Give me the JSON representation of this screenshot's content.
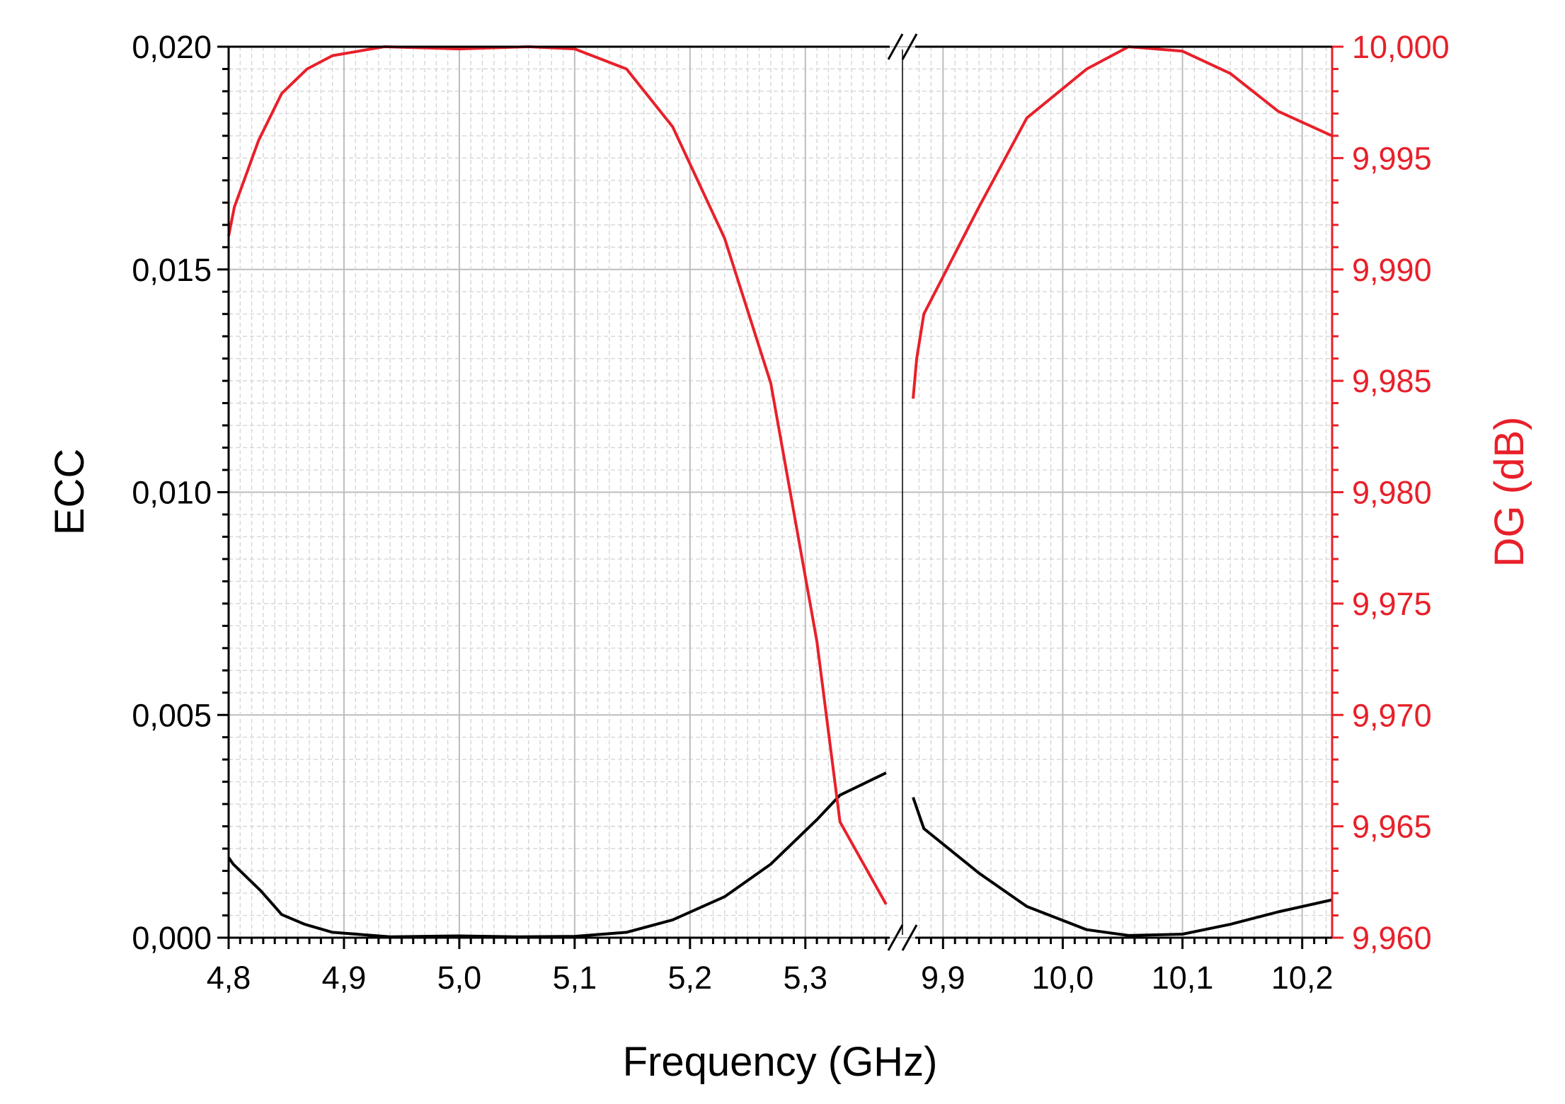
{
  "chart_data": {
    "type": "line",
    "xlabel": "Frequency (GHz)",
    "ylabel_left": "ECC",
    "ylabel_right": "DG (dB)",
    "colors": {
      "ecc": "#000000",
      "dg": "#e8202a",
      "grid": "#c8c8c8"
    },
    "grid": true,
    "x_axis_break": {
      "segments": [
        [
          4.8,
          5.375
        ],
        [
          9.875,
          10.225
        ]
      ]
    },
    "y_left": {
      "range": [
        0,
        0.02
      ],
      "ticks": [
        "0,000",
        "0,005",
        "0,010",
        "0,015",
        "0,020"
      ]
    },
    "y_right": {
      "range": [
        9.96,
        10.0
      ],
      "ticks": [
        "9,960",
        "9,965",
        "9,970",
        "9,975",
        "9,980",
        "9,985",
        "9,990",
        "9,995",
        "10,000"
      ]
    },
    "x_ticks": [
      {
        "x": 4.8,
        "label": "4,8"
      },
      {
        "x": 4.9,
        "label": "4,9"
      },
      {
        "x": 5.0,
        "label": "5,0"
      },
      {
        "x": 5.1,
        "label": "5,1"
      },
      {
        "x": 5.2,
        "label": "5,2"
      },
      {
        "x": 5.3,
        "label": "5,3"
      },
      {
        "x": 9.9,
        "label": "9,9"
      },
      {
        "x": 10.0,
        "label": "10,0"
      },
      {
        "x": 10.1,
        "label": "10,1"
      },
      {
        "x": 10.2,
        "label": "10,2"
      }
    ],
    "series": [
      {
        "axis": "left",
        "segments": [
          [
            [
              4.8,
              0.0018
            ],
            [
              4.804,
              0.00165
            ],
            [
              4.828,
              0.00105
            ],
            [
              4.846,
              0.00052
            ],
            [
              4.866,
              0.0003
            ],
            [
              4.89,
              0.00012
            ],
            [
              4.94,
              2e-05
            ],
            [
              5.0,
              4e-05
            ],
            [
              5.05,
              2e-05
            ],
            [
              5.1,
              3e-05
            ],
            [
              5.145,
              0.00012
            ],
            [
              5.185,
              0.0004
            ],
            [
              5.23,
              0.00092
            ],
            [
              5.27,
              0.00165
            ],
            [
              5.31,
              0.00265
            ],
            [
              5.33,
              0.0032
            ],
            [
              5.37,
              0.0037
            ]
          ],
          [
            [
              9.875,
              0.00315
            ],
            [
              9.884,
              0.00245
            ],
            [
              9.93,
              0.00145
            ],
            [
              9.97,
              0.0007
            ],
            [
              10.02,
              0.00018
            ],
            [
              10.055,
              5e-05
            ],
            [
              10.1,
              8e-05
            ],
            [
              10.14,
              0.0003
            ],
            [
              10.18,
              0.00058
            ],
            [
              10.225,
              0.00085
            ]
          ]
        ]
      },
      {
        "axis": "right",
        "segments": [
          [
            [
              4.8,
              9.9915
            ],
            [
              4.805,
              9.9928
            ],
            [
              4.826,
              9.9958
            ],
            [
              4.846,
              9.9979
            ],
            [
              4.868,
              9.999
            ],
            [
              4.89,
              9.9996
            ],
            [
              4.935,
              10.0
            ],
            [
              5.0,
              9.9999
            ],
            [
              5.06,
              10.0
            ],
            [
              5.1,
              9.9999
            ],
            [
              5.145,
              9.999
            ],
            [
              5.185,
              9.9964
            ],
            [
              5.23,
              9.9914
            ],
            [
              5.27,
              9.9849
            ],
            [
              5.31,
              9.9733
            ],
            [
              5.33,
              9.9652
            ],
            [
              5.37,
              9.9615
            ]
          ],
          [
            [
              9.875,
              9.9842
            ],
            [
              9.878,
              9.986
            ],
            [
              9.884,
              9.988
            ],
            [
              9.93,
              9.9928
            ],
            [
              9.97,
              9.9968
            ],
            [
              10.02,
              9.999
            ],
            [
              10.055,
              10.0
            ],
            [
              10.1,
              9.9998
            ],
            [
              10.14,
              9.9988
            ],
            [
              10.18,
              9.9971
            ],
            [
              10.225,
              9.996
            ]
          ]
        ]
      }
    ]
  }
}
